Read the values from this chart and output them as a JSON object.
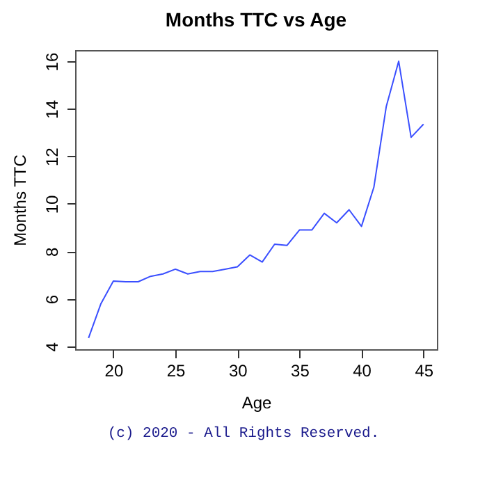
{
  "chart_data": {
    "type": "line",
    "title": "Months TTC vs Age",
    "xlabel": "Age",
    "ylabel": "Months TTC",
    "x": [
      18,
      19,
      20,
      21,
      22,
      23,
      24,
      25,
      26,
      27,
      28,
      29,
      30,
      31,
      32,
      33,
      34,
      35,
      36,
      37,
      38,
      39,
      40,
      41,
      42,
      43,
      44,
      45
    ],
    "series": [
      {
        "color": "#3a4fff",
        "values": [
          4.35,
          5.8,
          6.75,
          6.72,
          6.72,
          6.95,
          7.05,
          7.25,
          7.05,
          7.15,
          7.15,
          7.25,
          7.35,
          7.85,
          7.55,
          8.3,
          8.25,
          8.9,
          8.9,
          9.6,
          9.2,
          9.75,
          9.05,
          10.7,
          14.1,
          16.0,
          12.8,
          13.35
        ]
      }
    ],
    "xlim": [
      16.92,
      46.08
    ],
    "xticks": [
      20,
      25,
      30,
      35,
      40,
      45
    ],
    "ylim": [
      3.88,
      16.47
    ],
    "yticks": [
      4,
      6,
      8,
      10,
      12,
      14,
      16
    ],
    "grid": false,
    "annotations": [
      "(c) 2020 - All Rights Reserved."
    ]
  }
}
